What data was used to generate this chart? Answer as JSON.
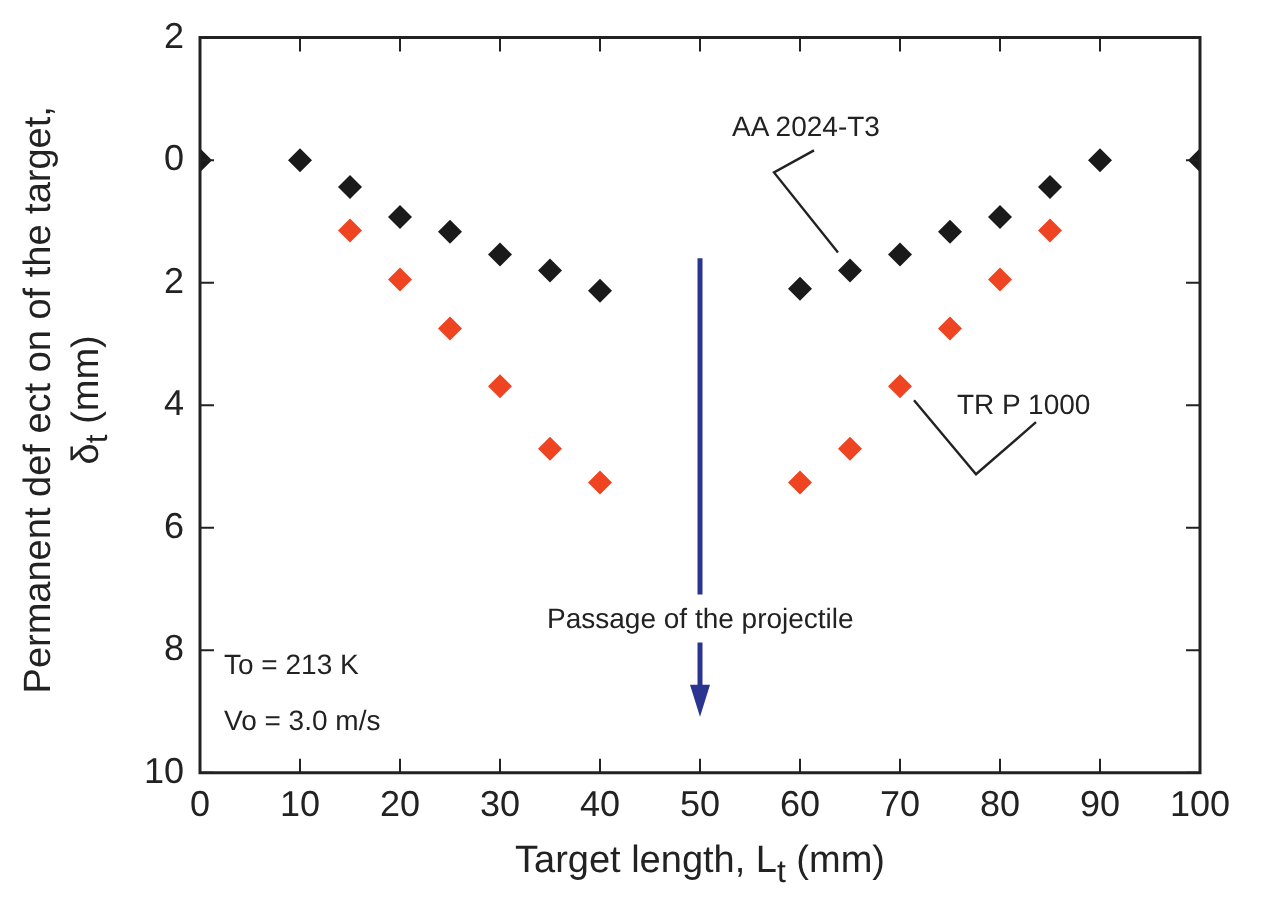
{
  "chart_data": {
    "type": "scatter",
    "xlabel": "Target length, L$_{t}$ (mm)",
    "ylabel": "Permanent def ect on of the target, δ$_{t}$ (mm)",
    "x": [
      0,
      10,
      15,
      20,
      25,
      30,
      35,
      40,
      60,
      65,
      70,
      75,
      80,
      85,
      90,
      100
    ],
    "series": [
      {
        "name": "TR P 1000",
        "color": "#ee4422",
        "values": [
          null,
          null,
          1.15,
          1.95,
          2.75,
          3.69,
          4.71,
          5.26,
          5.26,
          4.71,
          3.69,
          2.75,
          1.95,
          1.15,
          null,
          null
        ]
      },
      {
        "name": "AA 2024-T3",
        "color": "#1a1a1a",
        "values": [
          0,
          0,
          0.44,
          0.93,
          1.17,
          1.54,
          1.8,
          2.13,
          2.1,
          1.8,
          1.54,
          1.17,
          0.93,
          0.44,
          0,
          0
        ]
      }
    ],
    "xlim": [
      0,
      100
    ],
    "xticks": [
      0,
      10,
      20,
      30,
      40,
      50,
      60,
      70,
      80,
      90,
      100
    ],
    "ylim": [
      10,
      -2
    ],
    "yticks": [
      {
        "value": -2,
        "label": "2"
      },
      0,
      2,
      4,
      6,
      8,
      10
    ],
    "marker": "diamond",
    "grid": false,
    "legend": false,
    "annotations": [
      "Passage of the projectile",
      "To = 213 K",
      "Vo = 3.0 m/s"
    ]
  }
}
